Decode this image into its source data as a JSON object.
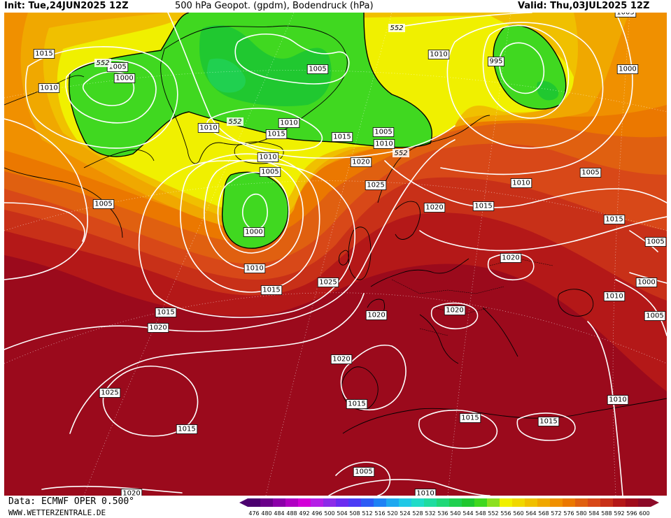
{
  "header": {
    "init": "Init: Tue,24JUN2025 12Z",
    "title": "500 hPa Geopot. (gpdm), Bodendruck (hPa)",
    "valid": "Valid: Thu,03JUL2025 12Z"
  },
  "footer": {
    "data_source": "Data: ECMWF OPER 0.500°",
    "website": "WWW.WETTERZENTRALE.DE"
  },
  "legend": {
    "values": [
      "476",
      "480",
      "484",
      "488",
      "492",
      "496",
      "500",
      "504",
      "508",
      "512",
      "516",
      "520",
      "524",
      "528",
      "532",
      "536",
      "540",
      "544",
      "548",
      "552",
      "556",
      "560",
      "564",
      "568",
      "572",
      "576",
      "580",
      "584",
      "588",
      "592",
      "596",
      "600"
    ],
    "colors": [
      "#4b006e",
      "#6a0089",
      "#8b00a8",
      "#b000c2",
      "#d300d8",
      "#b51fe6",
      "#8c2ce8",
      "#6a2cf0",
      "#4b3cf5",
      "#2c5cf5",
      "#1e82f5",
      "#1ea8f0",
      "#20c8e6",
      "#20dcc8",
      "#20dca0",
      "#20d878",
      "#20d050",
      "#20c830",
      "#40d820",
      "#8ce020",
      "#f0f000",
      "#f0d800",
      "#f0c000",
      "#f0a800",
      "#f09000",
      "#eb7800",
      "#e06010",
      "#d84818",
      "#c83018",
      "#b41818",
      "#a00c1c",
      "#8c0a28"
    ]
  },
  "map": {
    "pressure_labels": [
      {
        "text": "1015"
      },
      {
        "text": "1010"
      },
      {
        "text": "1005"
      },
      {
        "text": "1000"
      },
      {
        "text": "1005"
      },
      {
        "text": "1005"
      },
      {
        "text": "1010"
      },
      {
        "text": "1015"
      },
      {
        "text": "1010"
      },
      {
        "text": "1015"
      },
      {
        "text": "1010"
      },
      {
        "text": "1005"
      },
      {
        "text": "1010"
      },
      {
        "text": "1000"
      },
      {
        "text": "1010"
      },
      {
        "text": "1015"
      },
      {
        "text": "1020"
      },
      {
        "text": "1025"
      },
      {
        "text": "1005"
      },
      {
        "text": "1010"
      },
      {
        "text": "1005"
      },
      {
        "text": "995"
      },
      {
        "text": "1000"
      },
      {
        "text": "1005"
      },
      {
        "text": "1010"
      },
      {
        "text": "1015"
      },
      {
        "text": "1020"
      },
      {
        "text": "1015"
      },
      {
        "text": "1020"
      },
      {
        "text": "1015"
      },
      {
        "text": "1005"
      },
      {
        "text": "1000"
      },
      {
        "text": "1010"
      },
      {
        "text": "1005"
      },
      {
        "text": "1020"
      },
      {
        "text": "1020"
      },
      {
        "text": "1025"
      },
      {
        "text": "1020"
      },
      {
        "text": "1025"
      },
      {
        "text": "1015"
      },
      {
        "text": "1020"
      },
      {
        "text": "1015"
      },
      {
        "text": "1015"
      },
      {
        "text": "1015"
      },
      {
        "text": "1010"
      },
      {
        "text": "1010"
      },
      {
        "text": "1020"
      },
      {
        "text": "1005"
      }
    ],
    "height_labels": [
      {
        "text": "552"
      },
      {
        "text": "552"
      },
      {
        "text": "552"
      },
      {
        "text": "552"
      }
    ]
  }
}
